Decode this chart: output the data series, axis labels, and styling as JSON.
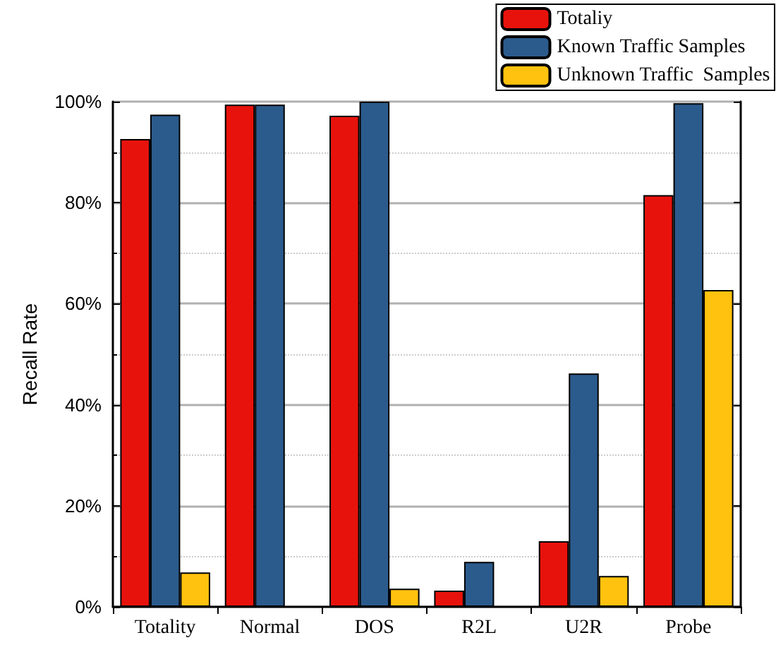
{
  "chart_data": {
    "type": "bar",
    "ylabel": "Recall Rate",
    "categories": [
      "Totality",
      "Normal",
      "DOS",
      "R2L",
      "U2R",
      "Probe"
    ],
    "series": [
      {
        "name": "Totaliy",
        "color": "#e8120c",
        "values": [
          92.6,
          99.4,
          97.2,
          3.2,
          13.0,
          81.5
        ]
      },
      {
        "name": "Known Traffic Samples",
        "color": "#2b5b8c",
        "values": [
          97.4,
          99.4,
          100,
          8.9,
          46.2,
          99.7
        ]
      },
      {
        "name": "Unknown Traffic  Samples",
        "color": "#ffc20e",
        "values": [
          6.8,
          null,
          3.6,
          null,
          6.1,
          62.7
        ]
      }
    ],
    "ylim": [
      0,
      100
    ],
    "yticks": [
      {
        "value": 0,
        "label": "0%"
      },
      {
        "value": 20,
        "label": "20%"
      },
      {
        "value": 40,
        "label": "40%"
      },
      {
        "value": 60,
        "label": "60%"
      },
      {
        "value": 80,
        "label": "80%"
      },
      {
        "value": 100,
        "label": "100%"
      }
    ],
    "grid": "y",
    "legend": "top right"
  }
}
